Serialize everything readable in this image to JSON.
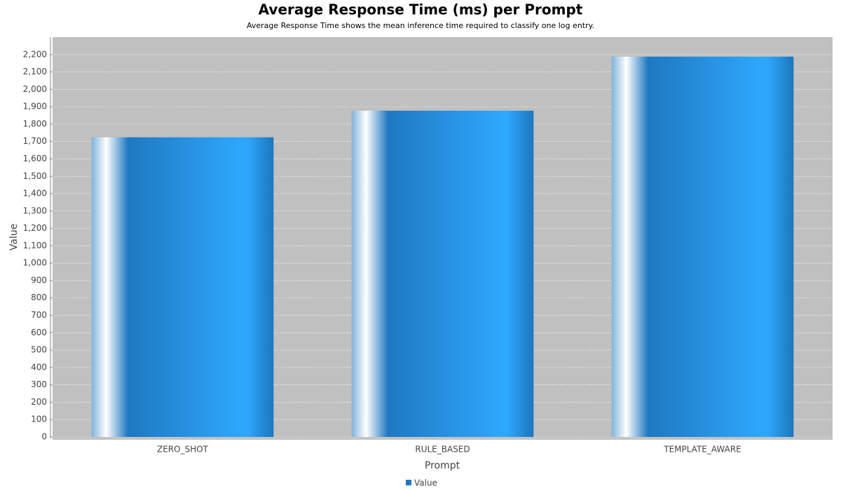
{
  "chart_data": {
    "type": "bar",
    "title": "Average Response Time (ms) per Prompt",
    "subtitle": "Average Response Time shows the mean inference time required to classify one log entry.",
    "x_label": "Prompt",
    "y_label": "Value",
    "categories": [
      "ZERO_SHOT",
      "RULE_BASED",
      "TEMPLATE_AWARE"
    ],
    "series": [
      {
        "name": "Value",
        "color": "#1f78c1",
        "values": [
          1724,
          1877,
          2188
        ]
      }
    ],
    "ylim": [
      0,
      2300
    ],
    "yticks": [
      0,
      100,
      200,
      300,
      400,
      500,
      600,
      700,
      800,
      900,
      {
        "value": 1000,
        "label": "1,000"
      },
      {
        "value": 1100,
        "label": "1,100"
      },
      {
        "value": 1200,
        "label": "1,200"
      },
      {
        "value": 1300,
        "label": "1,300"
      },
      {
        "value": 1400,
        "label": "1,400"
      },
      {
        "value": 1500,
        "label": "1,500"
      },
      {
        "value": 1600,
        "label": "1,600"
      },
      {
        "value": 1700,
        "label": "1,700"
      },
      {
        "value": 1800,
        "label": "1,800"
      },
      {
        "value": 1900,
        "label": "1,900"
      },
      {
        "value": 2000,
        "label": "2,000"
      },
      {
        "value": 2100,
        "label": "2,100"
      },
      {
        "value": 2200,
        "label": "2,200"
      }
    ],
    "grid": true
  }
}
